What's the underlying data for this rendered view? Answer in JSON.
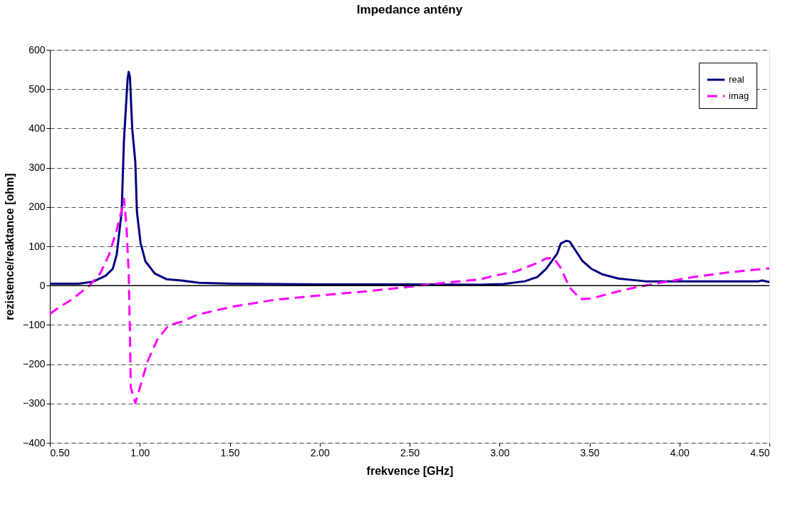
{
  "chart_data": {
    "type": "line",
    "title": "Impedance antény",
    "xlabel": "frekvence [GHz]",
    "ylabel": "rezistence/reaktance [ohm]",
    "xlim": [
      0.5,
      4.5
    ],
    "ylim": [
      -400,
      600
    ],
    "xticks": [
      {
        "value": 0.5,
        "label": "0.50"
      },
      {
        "value": 1,
        "label": "1.00"
      },
      {
        "value": 1.5,
        "label": "1.50"
      },
      {
        "value": 2,
        "label": "2.00"
      },
      {
        "value": 2.5,
        "label": "2.50"
      },
      {
        "value": 3,
        "label": "3.00"
      },
      {
        "value": 3.5,
        "label": "3.50"
      },
      {
        "value": 4,
        "label": "4.00"
      },
      {
        "value": 4.5,
        "label": "4.50"
      }
    ],
    "yticks": [
      -400,
      -300,
      -200,
      -100,
      0,
      100,
      200,
      300,
      400,
      500,
      600
    ],
    "grid": "y",
    "legend": "top right",
    "series": [
      {
        "name": "real",
        "color": "#000080",
        "line_style": "solid",
        "x": [
          0.5,
          0.66,
          0.74,
          0.81,
          0.85,
          0.872,
          0.899,
          0.912,
          0.932,
          0.938,
          0.945,
          0.958,
          0.975,
          0.984,
          1.004,
          1.031,
          1.083,
          1.15,
          1.23,
          1.33,
          1.51,
          2.0,
          2.5,
          2.89,
          3.02,
          3.14,
          3.21,
          3.26,
          3.32,
          3.34,
          3.37,
          3.39,
          3.42,
          3.46,
          3.51,
          3.57,
          3.66,
          3.81,
          4.44,
          4.46,
          4.5
        ],
        "values": [
          5,
          5,
          10,
          25,
          43,
          80,
          188,
          370,
          525,
          544,
          532,
          399,
          315,
          188,
          109,
          62,
          31,
          16,
          13,
          7,
          5,
          3,
          3,
          2,
          4,
          11,
          22,
          43,
          81,
          107,
          114,
          112,
          91,
          63,
          43,
          29,
          18,
          11,
          11,
          13,
          9
        ]
      },
      {
        "name": "imag",
        "color": "#ff00ff",
        "line_style": "dashed",
        "x": [
          0.5,
          0.555,
          0.62,
          0.67,
          0.72,
          0.78,
          0.83,
          0.87,
          0.9,
          0.912,
          0.925,
          0.938,
          0.945,
          0.95,
          0.975,
          1.004,
          1.044,
          1.097,
          1.16,
          1.24,
          1.32,
          1.51,
          1.75,
          2.0,
          2.25,
          2.5,
          2.65,
          2.89,
          2.97,
          3.09,
          3.2,
          3.26,
          3.3,
          3.34,
          3.39,
          3.45,
          3.51,
          3.63,
          3.75,
          3.89,
          4.08,
          4.28,
          4.5
        ],
        "values": [
          -72,
          -54,
          -36,
          -18,
          0,
          31,
          80,
          139,
          194,
          221,
          158,
          36,
          -114,
          -259,
          -299,
          -254,
          -192,
          -138,
          -101,
          -91,
          -74,
          -54,
          -36,
          -25,
          -15,
          -3,
          5,
          16,
          25,
          36,
          56,
          69,
          71,
          45,
          -5,
          -34,
          -33,
          -18,
          -5,
          7,
          22,
          34,
          44
        ]
      }
    ]
  }
}
